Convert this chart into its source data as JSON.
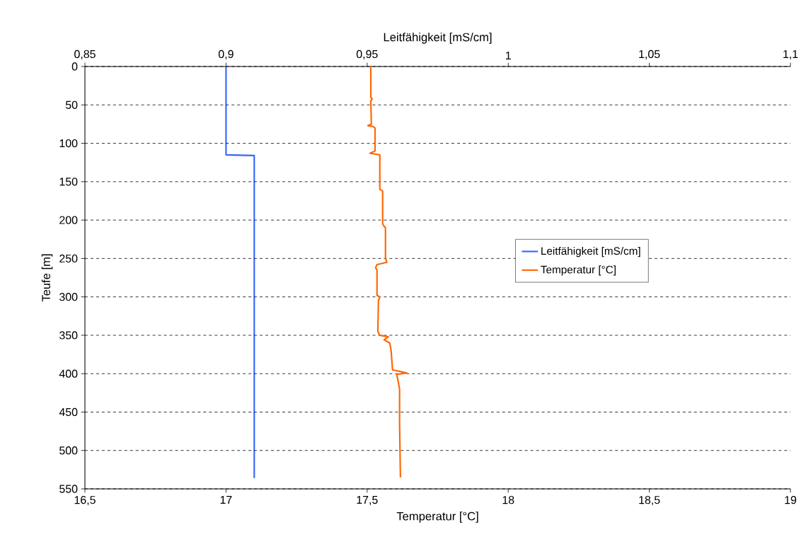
{
  "chart_data": {
    "type": "line",
    "xlabel": "Temperatur [°C]",
    "x2label": "Leitfähigkeit [mS/cm]",
    "ylabel": "Teufe [m]",
    "xlim": [
      16.5,
      19
    ],
    "xticks": [
      {
        "value": 16.5,
        "label": "16,5"
      },
      17,
      {
        "value": 17.5,
        "label": "17,5"
      },
      18,
      {
        "value": 18.5,
        "label": "18,5"
      },
      19
    ],
    "x2lim": [
      0.85,
      1.1
    ],
    "x2ticks": [
      {
        "value": 0.85,
        "label": "0,85"
      },
      {
        "value": 0.9,
        "label": "0,9"
      },
      {
        "value": 0.95,
        "label": "0,95"
      },
      1,
      {
        "value": 1.05,
        "label": "1,05"
      },
      {
        "value": 1.1,
        "label": "1,1"
      }
    ],
    "ylim": [
      550,
      0
    ],
    "yticks": [
      0,
      50,
      100,
      150,
      200,
      250,
      300,
      350,
      400,
      450,
      500,
      550
    ],
    "grid": "y",
    "legend": "right",
    "marker": "none",
    "line_style": "solid",
    "series": [
      {
        "name": "Leitfähigkeit [mS/cm]",
        "color": "#3366ff",
        "axis": "x2",
        "x": [
          0.9,
          0.9,
          0.91,
          0.91
        ],
        "values": [
          0,
          115,
          116,
          536
        ]
      },
      {
        "name": "Temperatur [°C]",
        "color": "#ff6600",
        "x": [
          17.513,
          17.513,
          17.518,
          17.513,
          17.515,
          17.503,
          17.52,
          17.528,
          17.528,
          17.51,
          17.528,
          17.545,
          17.545,
          17.555,
          17.555,
          17.56,
          17.565,
          17.565,
          17.57,
          17.535,
          17.53,
          17.535,
          17.535,
          17.545,
          17.54,
          17.538,
          17.545,
          17.575,
          17.56,
          17.58,
          17.585,
          17.59,
          17.64,
          17.605,
          17.61,
          17.615,
          17.615,
          17.618
        ],
        "values": [
          0,
          40,
          42,
          45,
          75,
          77,
          78,
          80,
          110,
          113,
          114,
          115,
          160,
          162,
          205,
          208,
          210,
          250,
          255,
          258,
          262,
          265,
          298,
          300,
          305,
          345,
          350,
          352,
          356,
          360,
          370,
          395,
          399,
          401,
          410,
          420,
          465,
          535
        ]
      }
    ]
  }
}
